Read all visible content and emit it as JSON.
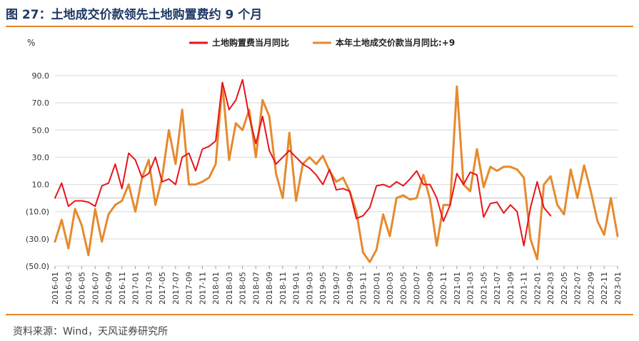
{
  "title": "图 27：土地成交价款领先土地购置费约 9 个月",
  "source": "资料来源：Wind，天风证券研究所",
  "chart_data": {
    "type": "line",
    "ylabel": "%",
    "ylim": [
      -50,
      90
    ],
    "yticks": [
      90,
      70,
      50,
      30,
      10,
      -10,
      -30,
      -50
    ],
    "ytick_labels": [
      "90.0",
      "70.0",
      "50.0",
      "30.0",
      "10.0",
      "(10.0)",
      "(30.0)",
      "(50.0)"
    ],
    "negative_tick_color": "#c00000",
    "grid": true,
    "legend_position": "top",
    "x": [
      "2016-01",
      "2016-02",
      "2016-03",
      "2016-04",
      "2016-05",
      "2016-06",
      "2016-07",
      "2016-08",
      "2016-09",
      "2016-10",
      "2016-11",
      "2016-12",
      "2017-01",
      "2017-02",
      "2017-03",
      "2017-04",
      "2017-05",
      "2017-06",
      "2017-07",
      "2017-08",
      "2017-09",
      "2017-10",
      "2017-11",
      "2017-12",
      "2018-01",
      "2018-02",
      "2018-03",
      "2018-04",
      "2018-05",
      "2018-06",
      "2018-07",
      "2018-08",
      "2018-09",
      "2018-10",
      "2018-11",
      "2018-12",
      "2019-01",
      "2019-02",
      "2019-03",
      "2019-04",
      "2019-05",
      "2019-06",
      "2019-07",
      "2019-08",
      "2019-09",
      "2019-10",
      "2019-11",
      "2019-12",
      "2020-01",
      "2020-02",
      "2020-03",
      "2020-04",
      "2020-05",
      "2020-06",
      "2020-07",
      "2020-08",
      "2020-09",
      "2020-10",
      "2020-11",
      "2020-12",
      "2021-01",
      "2021-02",
      "2021-03",
      "2021-04",
      "2021-05",
      "2021-06",
      "2021-07",
      "2021-08",
      "2021-09",
      "2021-10",
      "2021-11",
      "2021-12",
      "2022-01",
      "2022-02",
      "2022-03",
      "2022-04",
      "2022-05",
      "2022-06",
      "2022-07",
      "2022-08",
      "2022-09",
      "2022-10",
      "2022-11",
      "2022-12",
      "2023-01"
    ],
    "x_tick_labels": [
      "2016-01",
      "2016-03",
      "2016-05",
      "2016-07",
      "2016-09",
      "2016-11",
      "2017-01",
      "2017-03",
      "2017-05",
      "2017-07",
      "2017-09",
      "2017-11",
      "2018-01",
      "2018-03",
      "2018-05",
      "2018-07",
      "2018-09",
      "2018-11",
      "2019-01",
      "2019-03",
      "2019-05",
      "2019-07",
      "2019-09",
      "2019-11",
      "2020-01",
      "2020-03",
      "2020-05",
      "2020-07",
      "2020-09",
      "2020-11",
      "2021-01",
      "2021-03",
      "2021-05",
      "2021-07",
      "2021-09",
      "2021-11",
      "2022-01",
      "2022-03",
      "2022-05",
      "2022-07",
      "2022-09",
      "2022-11",
      "2023-01"
    ],
    "series": [
      {
        "name": "土地购置费当月同比",
        "color": "#e8141b",
        "values": [
          0,
          11,
          -6,
          -2,
          -2,
          -3,
          -6,
          9,
          11,
          25,
          7,
          33,
          28,
          15,
          18,
          30,
          12,
          14,
          10,
          30,
          33,
          20,
          36,
          38,
          42,
          85,
          65,
          72,
          87,
          60,
          40,
          60,
          35,
          25,
          30,
          35,
          30,
          25,
          22,
          17,
          10,
          21,
          6,
          7,
          5,
          -15,
          -13,
          -7,
          9,
          10,
          8,
          12,
          9,
          14,
          20,
          10,
          10,
          0,
          -17,
          -5,
          18,
          10,
          19,
          17,
          -14,
          -4,
          -3,
          -11,
          -5,
          -10,
          -35,
          -7,
          12,
          -7,
          -13,
          null,
          null,
          null,
          null,
          null,
          null,
          null,
          null,
          null,
          null
        ]
      },
      {
        "name": "本年土地成交价款当月同比:+9",
        "color": "#e68a2e",
        "values": [
          -32,
          -16,
          -37,
          -8,
          -20,
          -42,
          -8,
          -32,
          -12,
          -5,
          -2,
          10,
          -10,
          15,
          28,
          -5,
          15,
          50,
          25,
          65,
          10,
          10,
          12,
          15,
          25,
          84,
          28,
          55,
          50,
          65,
          30,
          72,
          60,
          18,
          0,
          48,
          -2,
          25,
          30,
          25,
          31,
          20,
          12,
          15,
          5,
          -10,
          -40,
          -47,
          -38,
          -12,
          -28,
          0,
          2,
          -1,
          0,
          17,
          -1,
          -35,
          -5,
          -5,
          82,
          10,
          5,
          36,
          8,
          23,
          20,
          23,
          23,
          21,
          15,
          -30,
          -45,
          10,
          16,
          -5,
          -12,
          21,
          0,
          24,
          5,
          -17,
          -27,
          0,
          -28
        ]
      }
    ]
  }
}
